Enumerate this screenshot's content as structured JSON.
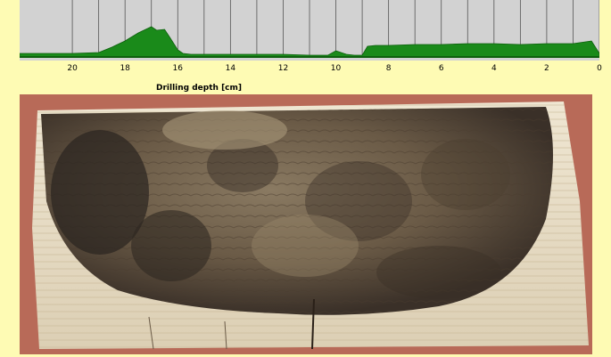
{
  "chart_data": {
    "type": "area",
    "xlabel": "Drilling depth [cm]",
    "x_axis_direction": "reversed",
    "xlim": [
      22,
      0
    ],
    "tick_labels": [
      "20",
      "18",
      "16",
      "14",
      "12",
      "10",
      "8",
      "6",
      "4",
      "2",
      "0"
    ],
    "tick_values": [
      20,
      18,
      16,
      14,
      12,
      10,
      8,
      6,
      4,
      2,
      0
    ],
    "grid": true,
    "series": [
      {
        "color": "#1a8a1a",
        "x": [
          22,
          20,
          19,
          18.5,
          18,
          17.5,
          17,
          16.8,
          16.5,
          16.3,
          16,
          15.8,
          15.5,
          15,
          14,
          13,
          12,
          11,
          10.3,
          10,
          9.6,
          9.3,
          9,
          8.8,
          8.5,
          8,
          7,
          6,
          5,
          4,
          3,
          2,
          1,
          0.3,
          0
        ],
        "y": [
          4,
          4,
          5,
          11,
          18,
          27,
          34,
          30,
          31,
          22,
          8,
          4,
          3,
          3,
          3,
          3,
          3,
          2,
          2,
          7,
          3,
          2,
          2,
          12,
          13,
          13,
          14,
          14,
          15,
          15,
          14,
          15,
          15,
          18,
          4
        ]
      }
    ],
    "ylim": [
      0,
      60
    ]
  },
  "photo": {
    "subject": "cross-section-of-decayed-wood-beam",
    "colors": {
      "background": "#b86a58",
      "healthy_wood": "#e8dcc4",
      "decay": "#5a4a38",
      "dark_rot": "#2a2420"
    }
  }
}
